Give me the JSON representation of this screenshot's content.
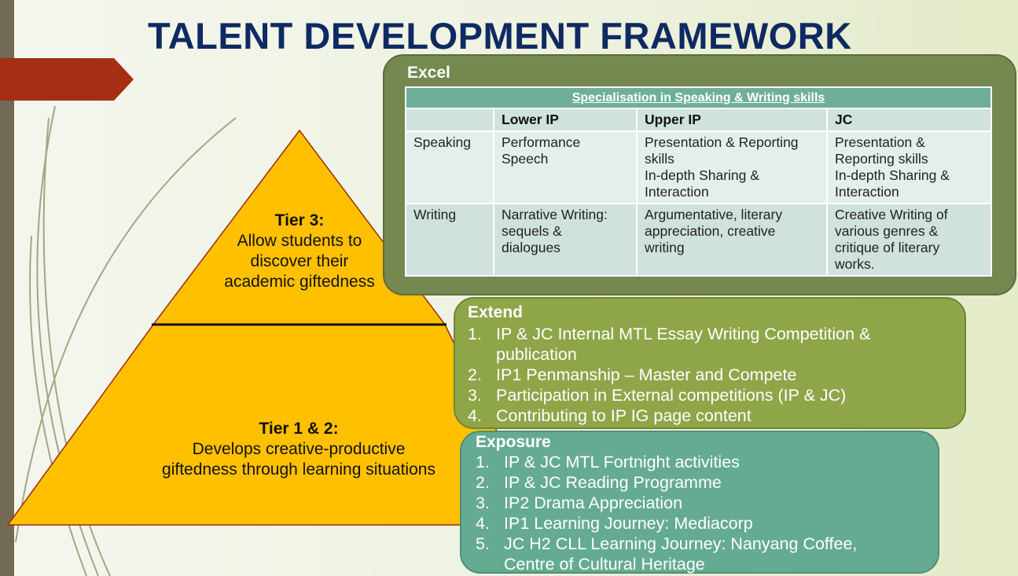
{
  "title": "TALENT DEVELOPMENT FRAMEWORK",
  "colors": {
    "title": "#0f2a62",
    "pyramid": "#ffc000",
    "accent_arrow": "#a52f12",
    "excel_box": "#75884f",
    "extend_box": "#8ea648",
    "exposure_box": "#65ab92",
    "table_header": "#6faf98"
  },
  "pyramid": {
    "tier3": {
      "heading": "Tier 3:",
      "lines": [
        "Allow students to",
        "discover their",
        "academic giftedness"
      ]
    },
    "tier12": {
      "heading": "Tier 1 & 2:",
      "lines": [
        "Develops creative-productive",
        "giftedness through learning situations"
      ]
    }
  },
  "excel": {
    "label": "Excel",
    "table": {
      "caption": "Specialisation in Speaking & Writing skills",
      "headers": [
        "",
        "Lower IP",
        "Upper IP",
        "JC"
      ],
      "rows": [
        {
          "label": "Speaking",
          "cells": [
            [
              "Performance",
              "Speech"
            ],
            [
              "Presentation & Reporting",
              "skills",
              "In-depth Sharing &",
              "Interaction"
            ],
            [
              "Presentation &",
              "Reporting skills",
              "In-depth Sharing &",
              "Interaction"
            ]
          ]
        },
        {
          "label": "Writing",
          "cells": [
            [
              "Narrative Writing:",
              "sequels &",
              "dialogues"
            ],
            [
              "Argumentative, literary",
              "appreciation, creative",
              "writing"
            ],
            [
              "Creative Writing of",
              "various genres &",
              "critique of literary",
              "works."
            ]
          ]
        }
      ]
    }
  },
  "extend": {
    "label": "Extend",
    "items": [
      {
        "num": "1.",
        "lines": [
          "IP & JC Internal MTL Essay Writing Competition &",
          "publication"
        ]
      },
      {
        "num": "2.",
        "lines": [
          "IP1 Penmanship – Master and Compete"
        ]
      },
      {
        "num": "3.",
        "lines": [
          "Participation in External competitions (IP & JC)"
        ]
      },
      {
        "num": "4.",
        "lines": [
          "Contributing to IP IG page content"
        ]
      }
    ]
  },
  "exposure": {
    "label": "Exposure",
    "items": [
      {
        "num": "1.",
        "lines": [
          "IP & JC MTL Fortnight activities"
        ]
      },
      {
        "num": "2.",
        "lines": [
          "IP & JC Reading Programme"
        ]
      },
      {
        "num": "3.",
        "lines": [
          "IP2 Drama Appreciation"
        ]
      },
      {
        "num": "4.",
        "lines": [
          "IP1 Learning Journey: Mediacorp"
        ]
      },
      {
        "num": "5.",
        "lines": [
          "JC H2 CLL Learning Journey: Nanyang Coffee,",
          "Centre of Cultural Heritage"
        ]
      }
    ]
  }
}
